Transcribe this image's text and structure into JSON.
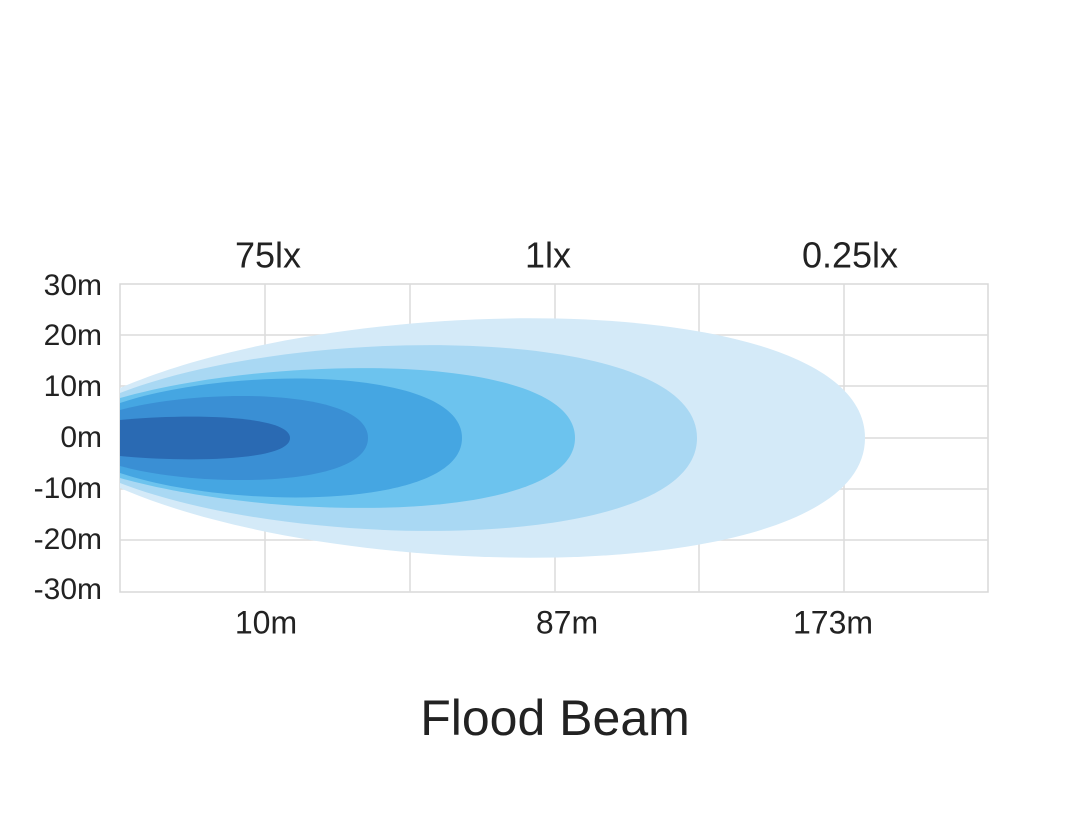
{
  "title": "Flood Beam",
  "y_labels": [
    "30m",
    "20m",
    "10m",
    "0m",
    "-10m",
    "-20m",
    "-30m"
  ],
  "top_labels": [
    "75lx",
    "1lx",
    "0.25lx"
  ],
  "bottom_labels": [
    "10m",
    "87m",
    "173m"
  ]
}
